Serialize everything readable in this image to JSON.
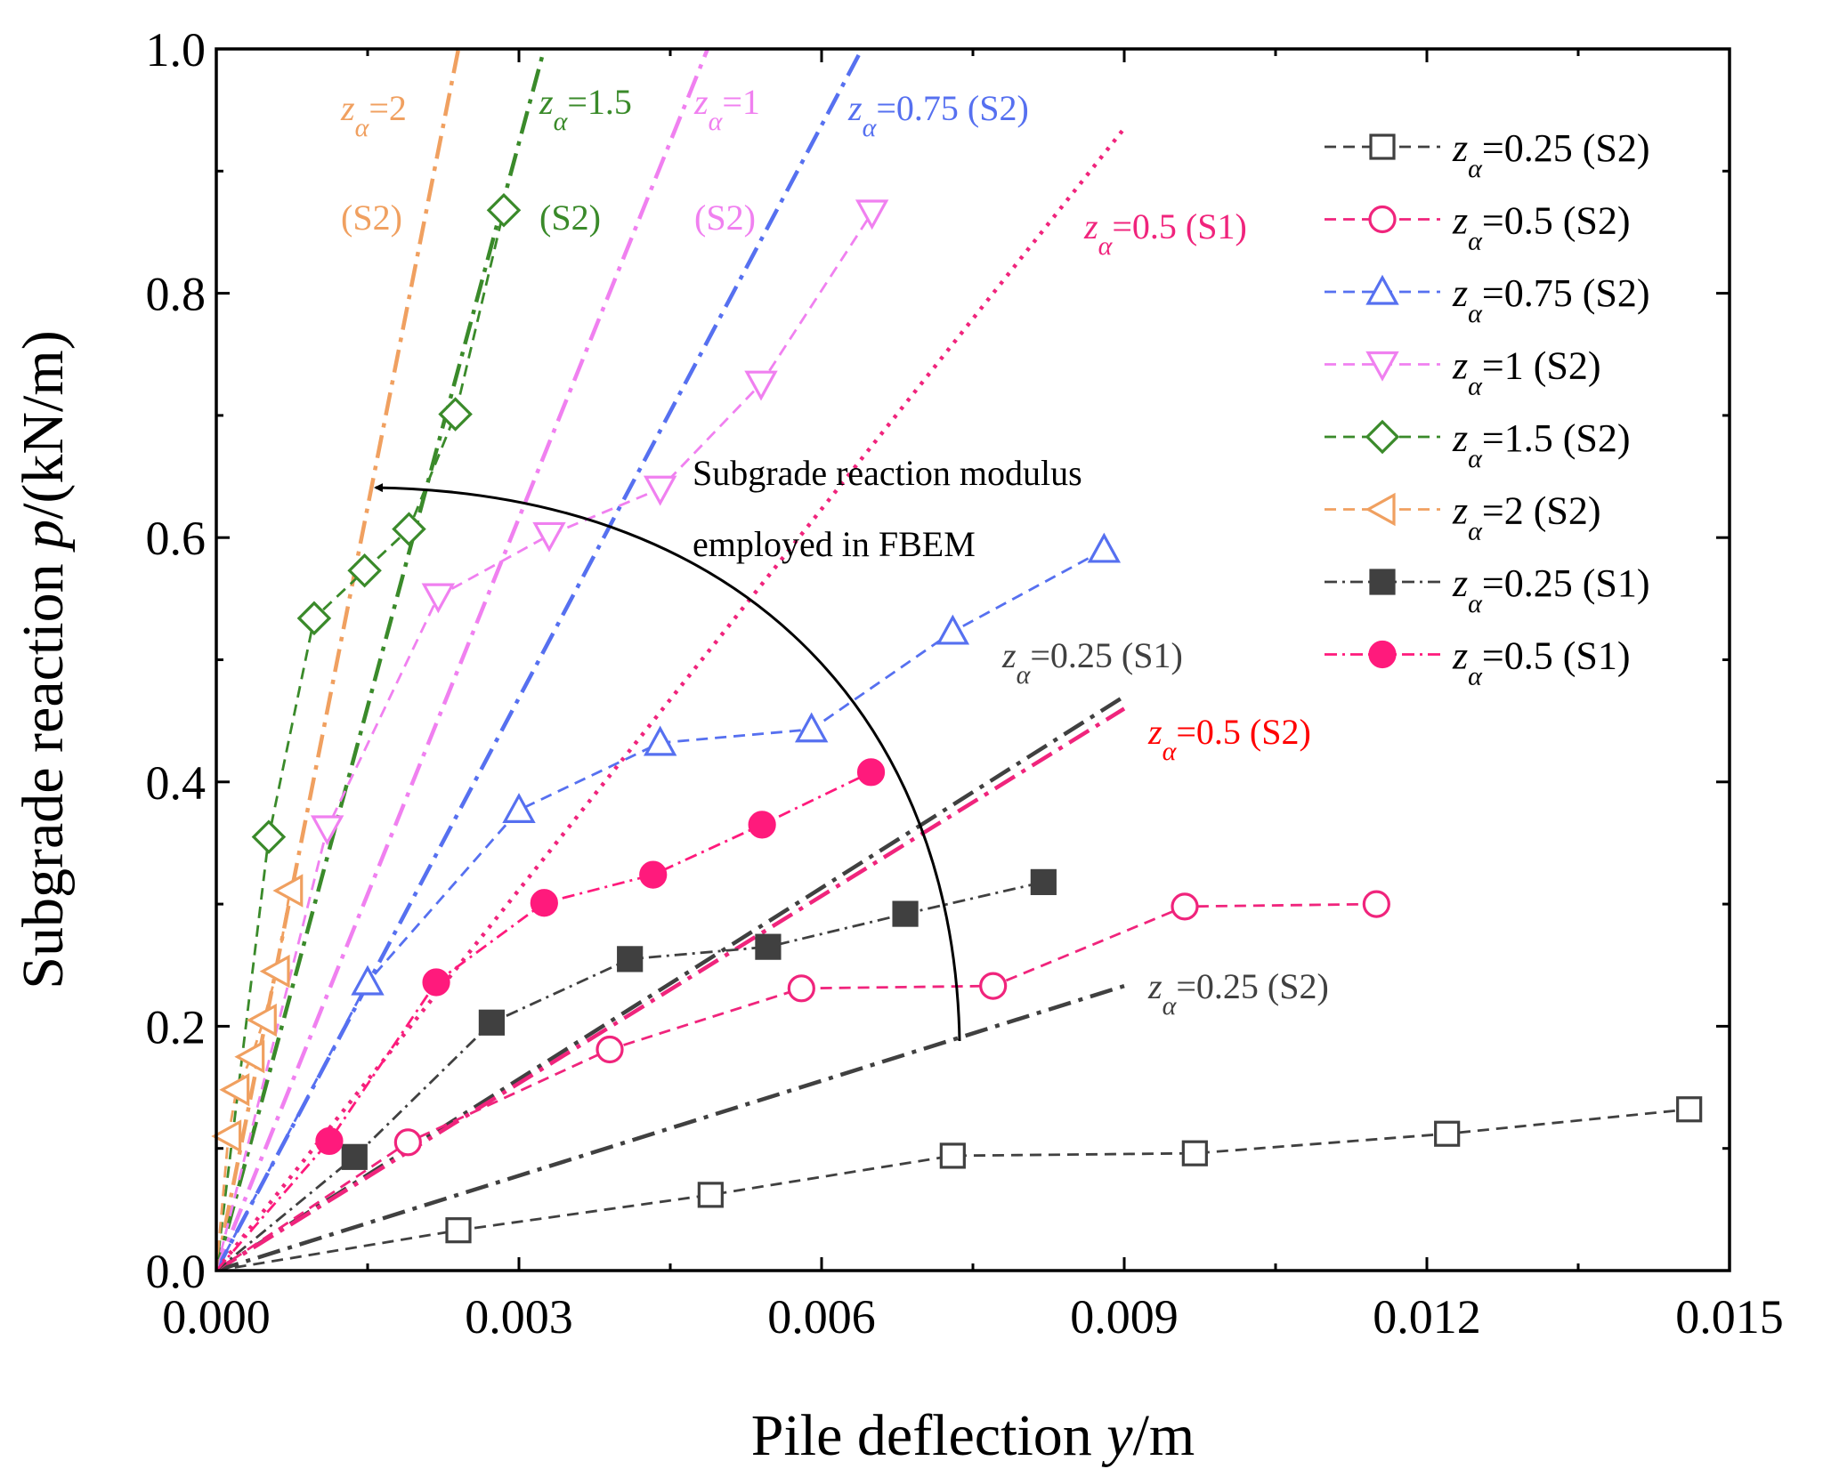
{
  "chart_data": {
    "type": "line",
    "xlabel": {
      "prefix": "Pile deflection ",
      "var": "y",
      "suffix": "/m"
    },
    "ylabel": {
      "prefix": "Subgrade reaction ",
      "var": "p",
      "suffix": "/(kN/m)"
    },
    "xlim": [
      0,
      0.015
    ],
    "ylim": [
      0,
      1.0
    ],
    "xticks": [
      0,
      0.003,
      0.006,
      0.009,
      0.012,
      0.015
    ],
    "xtick_labels": [
      "0.000",
      "0.003",
      "0.006",
      "0.009",
      "0.012",
      "0.015"
    ],
    "yticks": [
      0,
      0.2,
      0.4,
      0.6,
      0.8,
      1.0
    ],
    "ytick_labels": [
      "0.0",
      "0.2",
      "0.4",
      "0.6",
      "0.8",
      "1.0"
    ],
    "legend_position": "top-right",
    "series": [
      {
        "name": "za=0.25 (S2)",
        "legend": {
          "value": "=0.25 (S2)"
        },
        "color": "#404040",
        "marker": "square-open",
        "x": [
          0.0024,
          0.0049,
          0.0073,
          0.0097,
          0.0122,
          0.0146
        ],
        "y": [
          0.033,
          0.062,
          0.094,
          0.096,
          0.112,
          0.132
        ]
      },
      {
        "name": "za=0.5 (S2)",
        "legend": {
          "value": "=0.5 (S2)"
        },
        "color": "#f0247c",
        "marker": "circle-open",
        "x": [
          0.0019,
          0.0039,
          0.0058,
          0.0077,
          0.0096,
          0.0115
        ],
        "y": [
          0.105,
          0.181,
          0.231,
          0.233,
          0.298,
          0.3
        ]
      },
      {
        "name": "za=0.75 (S2)",
        "legend": {
          "value": "=0.75 (S2)"
        },
        "color": "#5670f0",
        "marker": "triangle-up-open",
        "x": [
          0.0015,
          0.003,
          0.0044,
          0.0059,
          0.0073,
          0.0088
        ],
        "y": [
          0.236,
          0.377,
          0.432,
          0.443,
          0.523,
          0.59
        ]
      },
      {
        "name": "za=1 (S2)",
        "legend": {
          "value": "=1 (S2)"
        },
        "color": "#f080f0",
        "marker": "triangle-down-open",
        "x": [
          0.0011,
          0.0022,
          0.0033,
          0.0044,
          0.0054,
          0.0065
        ],
        "y": [
          0.362,
          0.552,
          0.602,
          0.64,
          0.726,
          0.866
        ]
      },
      {
        "name": "za=1.5 (S2)",
        "legend": {
          "value": "=1.5 (S2)"
        },
        "color": "#3a8a2a",
        "marker": "diamond-open",
        "x": [
          0.00052,
          0.00097,
          0.00147,
          0.00191,
          0.00237,
          0.00285
        ],
        "y": [
          0.355,
          0.534,
          0.573,
          0.607,
          0.701,
          0.868
        ]
      },
      {
        "name": "za=2 (S2)",
        "legend": {
          "value": "=2 (S2)"
        },
        "color": "#f0a060",
        "marker": "triangle-left-open",
        "x": [
          0.00012,
          0.0002,
          0.00035,
          0.00047,
          0.0006,
          0.00073
        ],
        "y": [
          0.11,
          0.148,
          0.175,
          0.205,
          0.245,
          0.311
        ]
      },
      {
        "name": "za=0.25 (S1)",
        "legend": {
          "value": "=0.25 (S1)"
        },
        "color": "#404040",
        "marker": "square-filled",
        "x": [
          0.00137,
          0.00273,
          0.0041,
          0.00547,
          0.00683,
          0.0082
        ],
        "y": [
          0.093,
          0.203,
          0.255,
          0.265,
          0.292,
          0.318
        ]
      },
      {
        "name": "za=0.5 (S1)",
        "legend": {
          "value": "=0.5 (S1)"
        },
        "color": "#ff1a7c",
        "marker": "circle-filled",
        "x": [
          0.00112,
          0.00218,
          0.00325,
          0.00433,
          0.00541,
          0.00649
        ],
        "y": [
          0.106,
          0.236,
          0.301,
          0.324,
          0.365,
          0.408
        ]
      }
    ],
    "fit_lines": [
      {
        "id": "fit-za-2-s2",
        "color": "#f0a060",
        "style": "dash-dot",
        "x": [
          0,
          0.0024
        ],
        "y": [
          0,
          1.0
        ]
      },
      {
        "id": "fit-za-1.5-s2",
        "color": "#3a8a2a",
        "style": "dash-dot",
        "x": [
          0,
          0.00325
        ],
        "y": [
          0,
          1.0
        ]
      },
      {
        "id": "fit-za-1-s2",
        "color": "#f080f0",
        "style": "dash-dot",
        "x": [
          0,
          0.00487
        ],
        "y": [
          0,
          1.0
        ]
      },
      {
        "id": "fit-za-0.75-s2",
        "color": "#5670f0",
        "style": "dash-dot",
        "x": [
          0,
          0.0064
        ],
        "y": [
          0,
          1.0
        ]
      },
      {
        "id": "fit-za-0.5-s1",
        "color": "#f0247c",
        "style": "dot",
        "x": [
          0,
          0.009
        ],
        "y": [
          0,
          0.935
        ]
      },
      {
        "id": "fit-za-0.25-s1",
        "color": "#404040",
        "style": "dash-dot",
        "x": [
          0,
          0.009
        ],
        "y": [
          0,
          0.47
        ]
      },
      {
        "id": "fit-za-0.5-s2",
        "color": "#f0247c",
        "style": "dash-dot",
        "x": [
          0,
          0.009
        ],
        "y": [
          0,
          0.46
        ]
      },
      {
        "id": "fit-za-0.25-s2",
        "color": "#404040",
        "style": "dash-dot",
        "x": [
          0,
          0.009
        ],
        "y": [
          0,
          0.233
        ]
      }
    ],
    "annotations": [
      {
        "id": "ann-fit-za-2",
        "var": "z",
        "sub": "α",
        "value": "=2",
        "color": "#f0a060"
      },
      {
        "id": "ann-fit-za-2-case",
        "text": "(S2)",
        "color": "#f0a060"
      },
      {
        "id": "ann-fit-za-1.5",
        "var": "z",
        "sub": "α",
        "value": "=1.5",
        "color": "#3a8a2a"
      },
      {
        "id": "ann-fit-za-1.5-case",
        "text": "(S2)",
        "color": "#3a8a2a"
      },
      {
        "id": "ann-fit-za-1",
        "var": "z",
        "sub": "α",
        "value": "=1",
        "color": "#f080f0"
      },
      {
        "id": "ann-fit-za-1-case",
        "text": "(S2)",
        "color": "#f080f0"
      },
      {
        "id": "ann-fit-za-0.75",
        "var": "z",
        "sub": "α",
        "value": "=0.75 (S2)",
        "color": "#5670f0"
      },
      {
        "id": "ann-fit-za-0.5-s1",
        "var": "z",
        "sub": "α",
        "value": "=0.5 (S1)",
        "color": "#f0247c"
      },
      {
        "id": "ann-fit-za-0.25-s1",
        "var": "z",
        "sub": "α",
        "value": "=0.25 (S1)",
        "color": "#404040"
      },
      {
        "id": "ann-fit-za-0.5-s2",
        "var": "z",
        "sub": "α",
        "value": "=0.5 (S2)",
        "color": "#ff0000"
      },
      {
        "id": "ann-fit-za-0.25-s2",
        "var": "z",
        "sub": "α",
        "value": "=0.25 (S2)",
        "color": "#404040"
      }
    ],
    "arc_annotation": {
      "line1": "Subgrade reaction modulus",
      "line2": "employed in FBEM"
    }
  }
}
